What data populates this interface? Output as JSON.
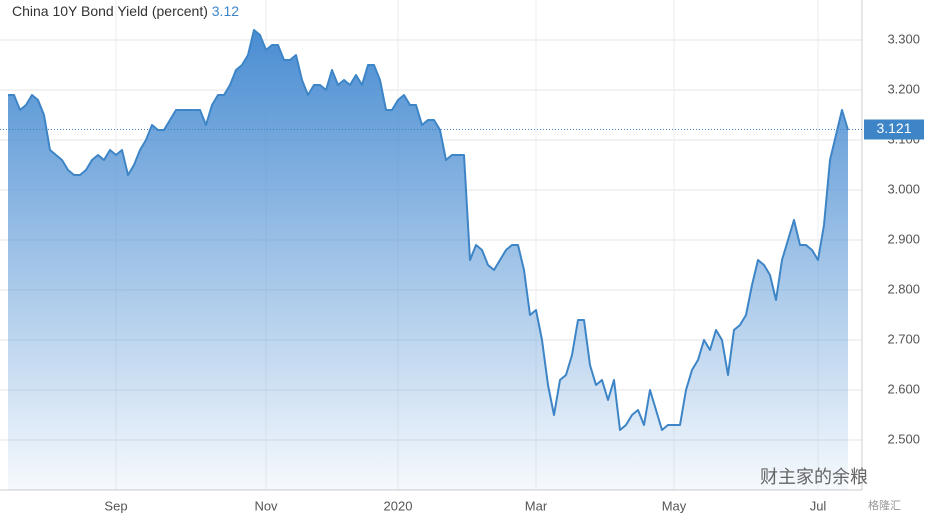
{
  "chart_data": {
    "type": "area",
    "title": "China 10Y Bond Yield (percent)",
    "current_value": 3.12,
    "last_value": 3.121,
    "color": "#3d85c6",
    "categories": [
      null,
      null,
      null,
      null,
      null,
      null,
      null,
      null,
      null,
      null,
      null,
      null,
      null,
      null,
      null,
      null,
      null,
      null,
      "Sep",
      null,
      null,
      null,
      null,
      null,
      null,
      null,
      null,
      null,
      null,
      null,
      null,
      null,
      null,
      null,
      null,
      null,
      null,
      null,
      null,
      null,
      null,
      null,
      null,
      "Nov",
      null,
      null,
      null,
      null,
      null,
      null,
      null,
      null,
      null,
      null,
      null,
      null,
      null,
      null,
      null,
      null,
      null,
      null,
      null,
      null,
      null,
      "2020",
      null,
      null,
      null,
      null,
      null,
      null,
      null,
      null,
      null,
      null,
      null,
      null,
      null,
      null,
      null,
      null,
      null,
      null,
      null,
      null,
      null,
      null,
      "Mar",
      null,
      null,
      null,
      null,
      null,
      null,
      null,
      null,
      null,
      null,
      null,
      null,
      null,
      null,
      null,
      null,
      null,
      null,
      null,
      null,
      null,
      null,
      "May",
      null,
      null,
      null,
      null,
      null,
      null,
      null,
      null,
      null,
      null,
      null,
      null,
      null,
      null,
      null,
      null,
      null,
      null,
      null,
      null,
      null,
      null,
      null,
      "Jul",
      null,
      null,
      null,
      null,
      null
    ],
    "values": [
      3.19,
      3.19,
      3.16,
      3.17,
      3.19,
      3.18,
      3.15,
      3.08,
      3.07,
      3.06,
      3.04,
      3.03,
      3.03,
      3.04,
      3.06,
      3.07,
      3.06,
      3.08,
      3.07,
      3.08,
      3.03,
      3.05,
      3.08,
      3.1,
      3.13,
      3.12,
      3.12,
      3.14,
      3.16,
      3.16,
      3.16,
      3.16,
      3.16,
      3.13,
      3.17,
      3.19,
      3.19,
      3.21,
      3.24,
      3.25,
      3.27,
      3.32,
      3.31,
      3.28,
      3.29,
      3.29,
      3.26,
      3.26,
      3.27,
      3.22,
      3.19,
      3.21,
      3.21,
      3.2,
      3.24,
      3.21,
      3.22,
      3.21,
      3.23,
      3.21,
      3.25,
      3.25,
      3.22,
      3.16,
      3.16,
      3.18,
      3.19,
      3.17,
      3.17,
      3.13,
      3.14,
      3.14,
      3.12,
      3.06,
      3.07,
      3.07,
      3.07,
      2.86,
      2.89,
      2.88,
      2.85,
      2.84,
      2.86,
      2.88,
      2.89,
      2.89,
      2.84,
      2.75,
      2.76,
      2.7,
      2.61,
      2.55,
      2.62,
      2.63,
      2.67,
      2.74,
      2.74,
      2.65,
      2.61,
      2.62,
      2.58,
      2.62,
      2.52,
      2.53,
      2.55,
      2.56,
      2.53,
      2.6,
      2.56,
      2.52,
      2.53,
      2.53,
      2.53,
      2.6,
      2.64,
      2.66,
      2.7,
      2.68,
      2.72,
      2.7,
      2.63,
      2.72,
      2.73,
      2.75,
      2.81,
      2.86,
      2.85,
      2.83,
      2.78,
      2.86,
      2.9,
      2.94,
      2.89,
      2.89,
      2.88,
      2.86,
      2.93,
      3.06,
      3.11,
      3.16,
      3.12
    ],
    "ylim": [
      2.4,
      3.38
    ],
    "yticks": [
      {
        "value": 2.5,
        "label": "2.500"
      },
      {
        "value": 2.6,
        "label": "2.600"
      },
      {
        "value": 2.7,
        "label": "2.700"
      },
      {
        "value": 2.8,
        "label": "2.800"
      },
      {
        "value": 2.9,
        "label": "2.900"
      },
      {
        "value": 3.0,
        "label": "3.000"
      },
      {
        "value": 3.1,
        "label": "3.100"
      },
      {
        "value": 3.2,
        "label": "3.200"
      },
      {
        "value": 3.3,
        "label": "3.300"
      }
    ],
    "grid": true,
    "watermark": "财主家的余粮",
    "watermark_small": "格隆汇"
  }
}
